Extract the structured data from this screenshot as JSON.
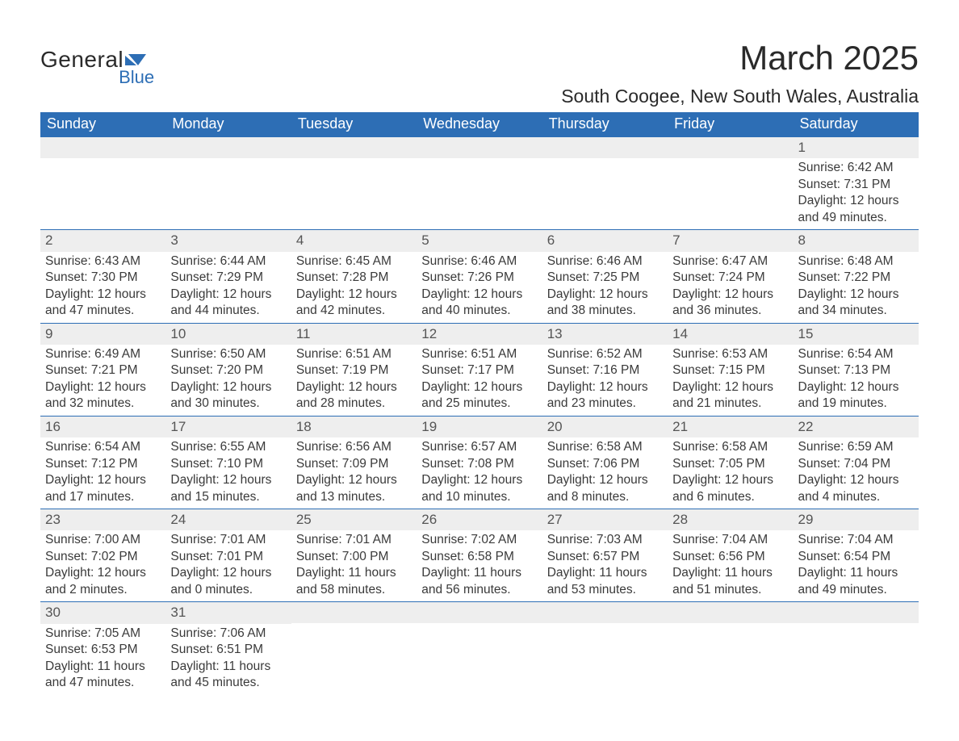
{
  "logo": {
    "text1": "General",
    "text2": "Blue",
    "accent_color": "#2d6eb5"
  },
  "title": "March 2025",
  "location": "South Coogee, New South Wales, Australia",
  "colors": {
    "header_bg": "#2d6eb5",
    "header_text": "#ffffff",
    "daynum_bg": "#eeeeee",
    "border": "#2d6eb5",
    "text": "#3a3a3a"
  },
  "weekdays": [
    "Sunday",
    "Monday",
    "Tuesday",
    "Wednesday",
    "Thursday",
    "Friday",
    "Saturday"
  ],
  "weeks": [
    [
      null,
      null,
      null,
      null,
      null,
      null,
      {
        "n": "1",
        "sr": "Sunrise: 6:42 AM",
        "ss": "Sunset: 7:31 PM",
        "d1": "Daylight: 12 hours",
        "d2": "and 49 minutes."
      }
    ],
    [
      {
        "n": "2",
        "sr": "Sunrise: 6:43 AM",
        "ss": "Sunset: 7:30 PM",
        "d1": "Daylight: 12 hours",
        "d2": "and 47 minutes."
      },
      {
        "n": "3",
        "sr": "Sunrise: 6:44 AM",
        "ss": "Sunset: 7:29 PM",
        "d1": "Daylight: 12 hours",
        "d2": "and 44 minutes."
      },
      {
        "n": "4",
        "sr": "Sunrise: 6:45 AM",
        "ss": "Sunset: 7:28 PM",
        "d1": "Daylight: 12 hours",
        "d2": "and 42 minutes."
      },
      {
        "n": "5",
        "sr": "Sunrise: 6:46 AM",
        "ss": "Sunset: 7:26 PM",
        "d1": "Daylight: 12 hours",
        "d2": "and 40 minutes."
      },
      {
        "n": "6",
        "sr": "Sunrise: 6:46 AM",
        "ss": "Sunset: 7:25 PM",
        "d1": "Daylight: 12 hours",
        "d2": "and 38 minutes."
      },
      {
        "n": "7",
        "sr": "Sunrise: 6:47 AM",
        "ss": "Sunset: 7:24 PM",
        "d1": "Daylight: 12 hours",
        "d2": "and 36 minutes."
      },
      {
        "n": "8",
        "sr": "Sunrise: 6:48 AM",
        "ss": "Sunset: 7:22 PM",
        "d1": "Daylight: 12 hours",
        "d2": "and 34 minutes."
      }
    ],
    [
      {
        "n": "9",
        "sr": "Sunrise: 6:49 AM",
        "ss": "Sunset: 7:21 PM",
        "d1": "Daylight: 12 hours",
        "d2": "and 32 minutes."
      },
      {
        "n": "10",
        "sr": "Sunrise: 6:50 AM",
        "ss": "Sunset: 7:20 PM",
        "d1": "Daylight: 12 hours",
        "d2": "and 30 minutes."
      },
      {
        "n": "11",
        "sr": "Sunrise: 6:51 AM",
        "ss": "Sunset: 7:19 PM",
        "d1": "Daylight: 12 hours",
        "d2": "and 28 minutes."
      },
      {
        "n": "12",
        "sr": "Sunrise: 6:51 AM",
        "ss": "Sunset: 7:17 PM",
        "d1": "Daylight: 12 hours",
        "d2": "and 25 minutes."
      },
      {
        "n": "13",
        "sr": "Sunrise: 6:52 AM",
        "ss": "Sunset: 7:16 PM",
        "d1": "Daylight: 12 hours",
        "d2": "and 23 minutes."
      },
      {
        "n": "14",
        "sr": "Sunrise: 6:53 AM",
        "ss": "Sunset: 7:15 PM",
        "d1": "Daylight: 12 hours",
        "d2": "and 21 minutes."
      },
      {
        "n": "15",
        "sr": "Sunrise: 6:54 AM",
        "ss": "Sunset: 7:13 PM",
        "d1": "Daylight: 12 hours",
        "d2": "and 19 minutes."
      }
    ],
    [
      {
        "n": "16",
        "sr": "Sunrise: 6:54 AM",
        "ss": "Sunset: 7:12 PM",
        "d1": "Daylight: 12 hours",
        "d2": "and 17 minutes."
      },
      {
        "n": "17",
        "sr": "Sunrise: 6:55 AM",
        "ss": "Sunset: 7:10 PM",
        "d1": "Daylight: 12 hours",
        "d2": "and 15 minutes."
      },
      {
        "n": "18",
        "sr": "Sunrise: 6:56 AM",
        "ss": "Sunset: 7:09 PM",
        "d1": "Daylight: 12 hours",
        "d2": "and 13 minutes."
      },
      {
        "n": "19",
        "sr": "Sunrise: 6:57 AM",
        "ss": "Sunset: 7:08 PM",
        "d1": "Daylight: 12 hours",
        "d2": "and 10 minutes."
      },
      {
        "n": "20",
        "sr": "Sunrise: 6:58 AM",
        "ss": "Sunset: 7:06 PM",
        "d1": "Daylight: 12 hours",
        "d2": "and 8 minutes."
      },
      {
        "n": "21",
        "sr": "Sunrise: 6:58 AM",
        "ss": "Sunset: 7:05 PM",
        "d1": "Daylight: 12 hours",
        "d2": "and 6 minutes."
      },
      {
        "n": "22",
        "sr": "Sunrise: 6:59 AM",
        "ss": "Sunset: 7:04 PM",
        "d1": "Daylight: 12 hours",
        "d2": "and 4 minutes."
      }
    ],
    [
      {
        "n": "23",
        "sr": "Sunrise: 7:00 AM",
        "ss": "Sunset: 7:02 PM",
        "d1": "Daylight: 12 hours",
        "d2": "and 2 minutes."
      },
      {
        "n": "24",
        "sr": "Sunrise: 7:01 AM",
        "ss": "Sunset: 7:01 PM",
        "d1": "Daylight: 12 hours",
        "d2": "and 0 minutes."
      },
      {
        "n": "25",
        "sr": "Sunrise: 7:01 AM",
        "ss": "Sunset: 7:00 PM",
        "d1": "Daylight: 11 hours",
        "d2": "and 58 minutes."
      },
      {
        "n": "26",
        "sr": "Sunrise: 7:02 AM",
        "ss": "Sunset: 6:58 PM",
        "d1": "Daylight: 11 hours",
        "d2": "and 56 minutes."
      },
      {
        "n": "27",
        "sr": "Sunrise: 7:03 AM",
        "ss": "Sunset: 6:57 PM",
        "d1": "Daylight: 11 hours",
        "d2": "and 53 minutes."
      },
      {
        "n": "28",
        "sr": "Sunrise: 7:04 AM",
        "ss": "Sunset: 6:56 PM",
        "d1": "Daylight: 11 hours",
        "d2": "and 51 minutes."
      },
      {
        "n": "29",
        "sr": "Sunrise: 7:04 AM",
        "ss": "Sunset: 6:54 PM",
        "d1": "Daylight: 11 hours",
        "d2": "and 49 minutes."
      }
    ],
    [
      {
        "n": "30",
        "sr": "Sunrise: 7:05 AM",
        "ss": "Sunset: 6:53 PM",
        "d1": "Daylight: 11 hours",
        "d2": "and 47 minutes."
      },
      {
        "n": "31",
        "sr": "Sunrise: 7:06 AM",
        "ss": "Sunset: 6:51 PM",
        "d1": "Daylight: 11 hours",
        "d2": "and 45 minutes."
      },
      null,
      null,
      null,
      null,
      null
    ]
  ]
}
